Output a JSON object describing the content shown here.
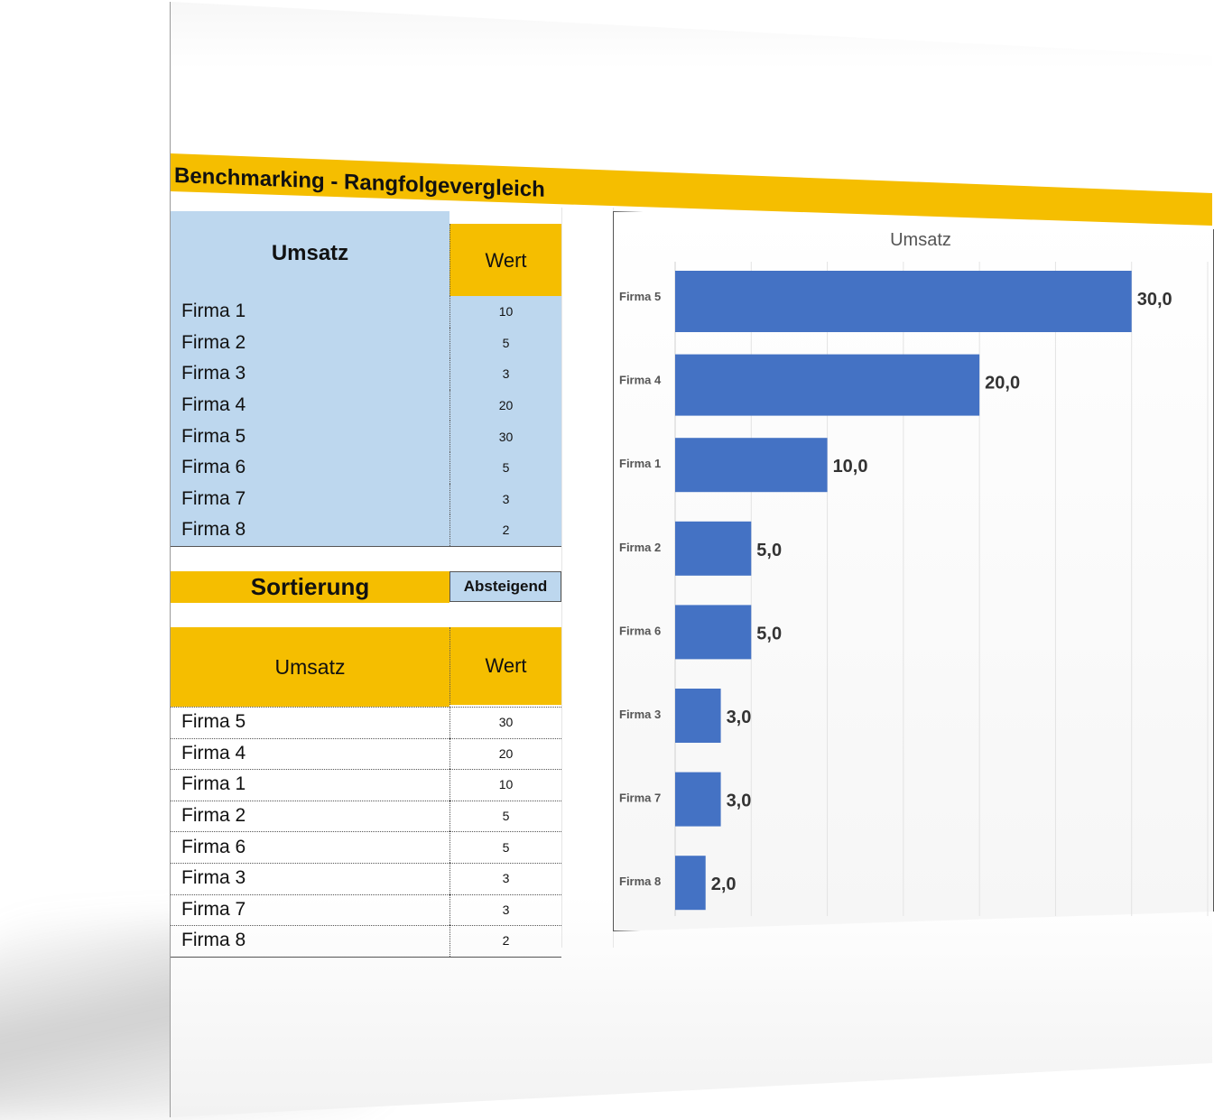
{
  "title": "Benchmarking - Rangfolgevergleich",
  "input_table": {
    "header_label": "Umsatz",
    "header_value": "Wert",
    "rows": [
      {
        "name": "Firma 1",
        "value": "10"
      },
      {
        "name": "Firma 2",
        "value": "5"
      },
      {
        "name": "Firma 3",
        "value": "3"
      },
      {
        "name": "Firma 4",
        "value": "20"
      },
      {
        "name": "Firma 5",
        "value": "30"
      },
      {
        "name": "Firma 6",
        "value": "5"
      },
      {
        "name": "Firma 7",
        "value": "3"
      },
      {
        "name": "Firma 8",
        "value": "2"
      }
    ]
  },
  "sort": {
    "label": "Sortierung",
    "value": "Absteigend"
  },
  "sorted_table": {
    "header_label": "Umsatz",
    "header_value": "Wert",
    "rows": [
      {
        "name": "Firma 5",
        "value": "30"
      },
      {
        "name": "Firma 4",
        "value": "20"
      },
      {
        "name": "Firma 1",
        "value": "10"
      },
      {
        "name": "Firma 2",
        "value": "5"
      },
      {
        "name": "Firma 6",
        "value": "5"
      },
      {
        "name": "Firma 3",
        "value": "3"
      },
      {
        "name": "Firma 7",
        "value": "3"
      },
      {
        "name": "Firma 8",
        "value": "2"
      }
    ]
  },
  "colors": {
    "accent": "#f5be00",
    "input_fill": "#bdd7ee",
    "bar": "#4472c4"
  },
  "chart_data": {
    "type": "bar",
    "orientation": "horizontal",
    "title": "Umsatz",
    "categories": [
      "Firma 5",
      "Firma 4",
      "Firma 1",
      "Firma 2",
      "Firma 6",
      "Firma 3",
      "Firma 7",
      "Firma 8"
    ],
    "values": [
      30,
      20,
      10,
      5,
      5,
      3,
      3,
      2
    ],
    "data_labels": [
      "30,0",
      "20,0",
      "10,0",
      "5,0",
      "5,0",
      "3,0",
      "3,0",
      "2,0"
    ],
    "xlim": [
      0,
      35
    ],
    "grid": true,
    "legend": "none"
  }
}
